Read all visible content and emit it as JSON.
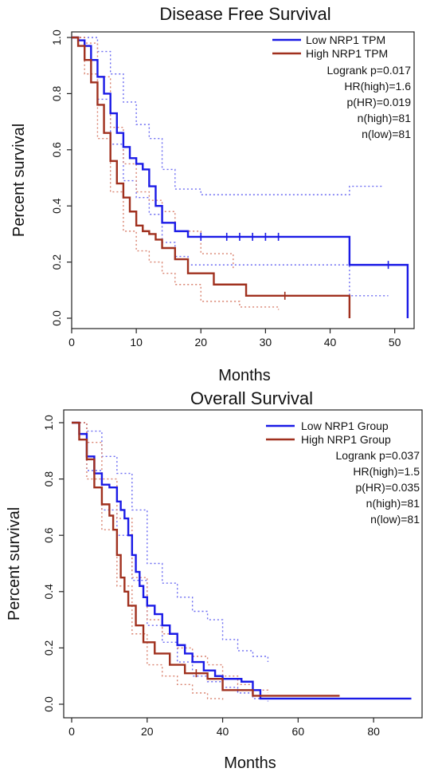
{
  "colors": {
    "low": "#1a1ae6",
    "high": "#a0301e",
    "low_ci": "#6b6bf2",
    "high_ci": "#d9826f"
  },
  "chart_data": [
    {
      "type": "line",
      "title": "Disease Free Survival",
      "xlabel": "Months",
      "ylabel": "Percent survival",
      "xlim": [
        0,
        53
      ],
      "ylim": [
        0,
        1.0
      ],
      "xticks": [
        0,
        10,
        20,
        30,
        40,
        50
      ],
      "yticks": [
        0.0,
        0.2,
        0.4,
        0.6,
        0.8,
        1.0
      ],
      "legend": {
        "placement": "top-right",
        "entries": [
          "Low NRP1 TPM",
          "High NRP1 TPM"
        ]
      },
      "stats": [
        "Logrank p=0.017",
        "HR(high)=1.6",
        "p(HR)=0.019",
        "n(high)=81",
        "n(low)=81"
      ],
      "series": [
        {
          "name": "Low NRP1 TPM",
          "color_key": "low",
          "x": [
            0,
            1,
            2,
            3,
            4,
            5,
            6,
            7,
            8,
            9,
            10,
            11,
            12,
            13,
            14,
            16,
            18,
            43,
            52
          ],
          "y": [
            1.0,
            0.99,
            0.97,
            0.92,
            0.86,
            0.8,
            0.73,
            0.66,
            0.61,
            0.57,
            0.55,
            0.53,
            0.47,
            0.4,
            0.34,
            0.31,
            0.29,
            0.19,
            0.0
          ],
          "censor_x": [
            20,
            24,
            26,
            28,
            30,
            32,
            49
          ]
        },
        {
          "name": "High NRP1 TPM",
          "color_key": "high",
          "x": [
            0,
            1,
            2,
            3,
            4,
            5,
            6,
            7,
            8,
            9,
            10,
            11,
            12,
            13,
            14,
            16,
            18,
            22,
            27,
            43
          ],
          "y": [
            1.0,
            0.97,
            0.92,
            0.84,
            0.76,
            0.66,
            0.56,
            0.48,
            0.43,
            0.38,
            0.33,
            0.31,
            0.3,
            0.28,
            0.25,
            0.21,
            0.16,
            0.12,
            0.08,
            0.0
          ],
          "censor_x": [
            33
          ]
        }
      ],
      "ci_bands": [
        {
          "color_key": "low_ci",
          "upper": {
            "x": [
              0,
              2,
              4,
              6,
              8,
              10,
              12,
              14,
              16,
              20,
              43,
              48
            ],
            "y": [
              1.0,
              1.0,
              0.95,
              0.87,
              0.77,
              0.69,
              0.64,
              0.53,
              0.46,
              0.44,
              0.47,
              0.47
            ]
          },
          "lower": {
            "x": [
              0,
              2,
              4,
              6,
              8,
              10,
              12,
              14,
              16,
              18,
              43,
              49
            ],
            "y": [
              1.0,
              0.92,
              0.78,
              0.62,
              0.49,
              0.43,
              0.37,
              0.27,
              0.22,
              0.19,
              0.08,
              0.08
            ]
          }
        },
        {
          "color_key": "high_ci",
          "upper": {
            "x": [
              0,
              2,
              4,
              6,
              8,
              10,
              12,
              14,
              16,
              20,
              25
            ],
            "y": [
              1.0,
              0.98,
              0.86,
              0.68,
              0.55,
              0.45,
              0.42,
              0.38,
              0.31,
              0.23,
              0.17
            ]
          },
          "lower": {
            "x": [
              0,
              2,
              4,
              6,
              8,
              10,
              12,
              14,
              16,
              20,
              26,
              32
            ],
            "y": [
              1.0,
              0.87,
              0.64,
              0.45,
              0.31,
              0.24,
              0.2,
              0.16,
              0.12,
              0.06,
              0.04,
              0.03
            ]
          }
        }
      ]
    },
    {
      "type": "line",
      "title": "Overall Survival",
      "xlabel": "Months",
      "ylabel": "Percent survival",
      "xlim": [
        0,
        92
      ],
      "ylim": [
        0,
        1.0
      ],
      "xticks": [
        0,
        20,
        40,
        60,
        80
      ],
      "yticks": [
        0.0,
        0.2,
        0.4,
        0.6,
        0.8,
        1.0
      ],
      "legend": {
        "placement": "top-right",
        "entries": [
          "Low NRP1 Group",
          "High NRP1 Group"
        ]
      },
      "stats": [
        "Logrank p=0.037",
        "HR(high)=1.5",
        "p(HR)=0.035",
        "n(high)=81",
        "n(low)=81"
      ],
      "series": [
        {
          "name": "Low NRP1 Group",
          "color_key": "low",
          "x": [
            0,
            2,
            4,
            6,
            8,
            10,
            12,
            13,
            14,
            15,
            16,
            17,
            18,
            19,
            20,
            22,
            24,
            26,
            28,
            30,
            32,
            35,
            38,
            40,
            45,
            48,
            50,
            90
          ],
          "y": [
            1.0,
            0.96,
            0.88,
            0.82,
            0.78,
            0.77,
            0.72,
            0.69,
            0.66,
            0.6,
            0.53,
            0.47,
            0.42,
            0.38,
            0.35,
            0.32,
            0.28,
            0.25,
            0.21,
            0.18,
            0.15,
            0.12,
            0.1,
            0.09,
            0.08,
            0.05,
            0.02,
            0.02
          ],
          "censor_x": []
        },
        {
          "name": "High NRP1 Group",
          "color_key": "high",
          "x": [
            0,
            2,
            4,
            6,
            8,
            10,
            11,
            12,
            13,
            14,
            15,
            17,
            19,
            22,
            26,
            30,
            36,
            40,
            48,
            71
          ],
          "y": [
            1.0,
            0.94,
            0.87,
            0.77,
            0.71,
            0.67,
            0.62,
            0.53,
            0.45,
            0.4,
            0.35,
            0.28,
            0.22,
            0.18,
            0.14,
            0.11,
            0.09,
            0.05,
            0.03,
            0.03
          ],
          "censor_x": [
            33
          ]
        }
      ],
      "ci_bands": [
        {
          "color_key": "low_ci",
          "upper": {
            "x": [
              0,
              4,
              8,
              12,
              16,
              20,
              24,
              28,
              32,
              36,
              40,
              44,
              48,
              52
            ],
            "y": [
              1.0,
              0.97,
              0.88,
              0.82,
              0.69,
              0.5,
              0.43,
              0.38,
              0.33,
              0.3,
              0.23,
              0.19,
              0.17,
              0.15
            ]
          },
          "lower": {
            "x": [
              0,
              4,
              8,
              12,
              16,
              20,
              24,
              28,
              32,
              36,
              40,
              44,
              48,
              52
            ],
            "y": [
              1.0,
              0.83,
              0.69,
              0.6,
              0.44,
              0.28,
              0.22,
              0.15,
              0.1,
              0.08,
              0.06,
              0.04,
              0.02,
              0.01
            ]
          }
        },
        {
          "color_key": "high_ci",
          "upper": {
            "x": [
              0,
              4,
              8,
              12,
              16,
              20,
              24,
              28,
              32,
              36,
              40,
              44,
              48,
              52
            ],
            "y": [
              1.0,
              0.93,
              0.8,
              0.66,
              0.45,
              0.3,
              0.25,
              0.2,
              0.17,
              0.14,
              0.1,
              0.07,
              0.05,
              0.04
            ]
          },
          "lower": {
            "x": [
              0,
              4,
              8,
              12,
              16,
              20,
              24,
              28,
              32,
              36,
              40
            ],
            "y": [
              1.0,
              0.8,
              0.62,
              0.42,
              0.25,
              0.14,
              0.1,
              0.07,
              0.04,
              0.02,
              0.01
            ]
          }
        }
      ]
    }
  ]
}
